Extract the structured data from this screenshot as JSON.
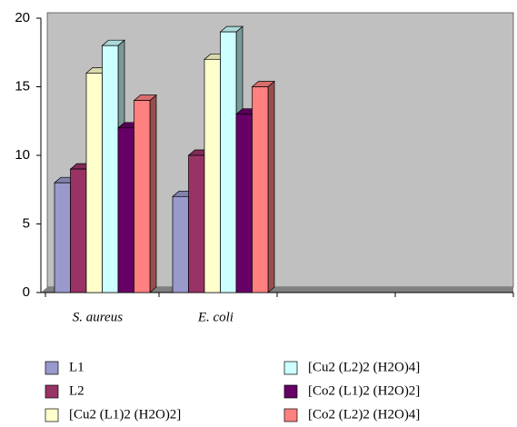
{
  "chart_data": {
    "type": "bar3d",
    "categories": [
      "S. aureus",
      "E. coli",
      null,
      null
    ],
    "series": [
      {
        "name": "L1",
        "color": "#9999cc",
        "values": [
          8,
          7,
          null,
          null
        ]
      },
      {
        "name": "L2",
        "color": "#993366",
        "values": [
          9,
          10,
          null,
          null
        ]
      },
      {
        "name": "[Cu2 (L1)2 (H2O)2]",
        "color": "#ffffcc",
        "values": [
          16,
          17,
          null,
          null
        ]
      },
      {
        "name": "[Cu2 (L2)2 (H2O)4]",
        "color": "#ccffff",
        "values": [
          18,
          19,
          null,
          null
        ]
      },
      {
        "name": "[Co2 (L1)2 (H2O)2]",
        "color": "#660066",
        "values": [
          12,
          13,
          null,
          null
        ]
      },
      {
        "name": "[Co2 (L2)2 (H2O)4]",
        "color": "#ff8080",
        "values": [
          14,
          15,
          null,
          null
        ]
      }
    ],
    "ylim": [
      0,
      20
    ],
    "yticks": [
      0,
      5,
      10,
      15,
      20
    ],
    "wall_color": "#c0c0c0"
  }
}
